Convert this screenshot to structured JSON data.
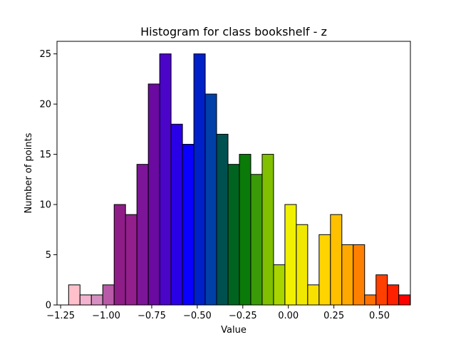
{
  "chart_data": {
    "type": "bar",
    "title": "Histogram for class bookshelf - z",
    "xlabel": "Value",
    "ylabel": "Number of points",
    "xlim": [
      -1.27,
      0.67
    ],
    "ylim": [
      0,
      26.25
    ],
    "xticks": [
      -1.25,
      -1.0,
      -0.75,
      -0.5,
      -0.25,
      0.0,
      0.25,
      0.5
    ],
    "xtick_labels": [
      "−1.25",
      "−1.00",
      "−0.75",
      "−0.50",
      "−0.25",
      "0.00",
      "0.25",
      "0.50"
    ],
    "yticks": [
      0,
      5,
      10,
      15,
      20,
      25
    ],
    "ytick_labels": [
      "0",
      "5",
      "10",
      "15",
      "20",
      "25"
    ],
    "grid": false,
    "bin_width": 0.0625,
    "bins": [
      {
        "x0": -1.175,
        "count": 2,
        "color": "#ffc0cb"
      },
      {
        "x0": -1.1125,
        "count": 1,
        "color": "#f4b4d0"
      },
      {
        "x0": -1.05,
        "count": 1,
        "color": "#d68fc1"
      },
      {
        "x0": -0.9875,
        "count": 2,
        "color": "#b95aa8"
      },
      {
        "x0": -0.925,
        "count": 10,
        "color": "#8e1d88"
      },
      {
        "x0": -0.8625,
        "count": 9,
        "color": "#931f8c"
      },
      {
        "x0": -0.8,
        "count": 14,
        "color": "#7d1598"
      },
      {
        "x0": -0.7375,
        "count": 22,
        "color": "#6a0aa0"
      },
      {
        "x0": -0.675,
        "count": 25,
        "color": "#4a05c8"
      },
      {
        "x0": -0.6125,
        "count": 18,
        "color": "#2a00e6"
      },
      {
        "x0": -0.55,
        "count": 16,
        "color": "#0a00ff"
      },
      {
        "x0": -0.4875,
        "count": 25,
        "color": "#0020c8"
      },
      {
        "x0": -0.425,
        "count": 21,
        "color": "#0040a8"
      },
      {
        "x0": -0.3625,
        "count": 17,
        "color": "#005050"
      },
      {
        "x0": -0.3,
        "count": 14,
        "color": "#006420"
      },
      {
        "x0": -0.2375,
        "count": 15,
        "color": "#0a7a08"
      },
      {
        "x0": -0.175,
        "count": 13,
        "color": "#3a9a08"
      },
      {
        "x0": -0.1125,
        "count": 15,
        "color": "#80c000"
      },
      {
        "x0": -0.05,
        "count": 4,
        "color": "#a8d400"
      },
      {
        "x0": 0.0125,
        "count": 10,
        "color": "#f0f000"
      },
      {
        "x0": 0.075,
        "count": 8,
        "color": "#f0e800"
      },
      {
        "x0": 0.1375,
        "count": 2,
        "color": "#f8e000"
      },
      {
        "x0": 0.2,
        "count": 7,
        "color": "#ffd400"
      },
      {
        "x0": 0.2625,
        "count": 9,
        "color": "#ffc000"
      },
      {
        "x0": 0.325,
        "count": 6,
        "color": "#ffa800"
      },
      {
        "x0": 0.3875,
        "count": 6,
        "color": "#ff8000"
      },
      {
        "x0": 0.45,
        "count": 1,
        "color": "#ff7000"
      },
      {
        "x0": 0.5125,
        "count": 3,
        "color": "#ff4000"
      },
      {
        "x0": 0.575,
        "count": 2,
        "color": "#ff2000"
      },
      {
        "x0": 0.6375,
        "count": 1,
        "color": "#ff0000"
      }
    ]
  }
}
